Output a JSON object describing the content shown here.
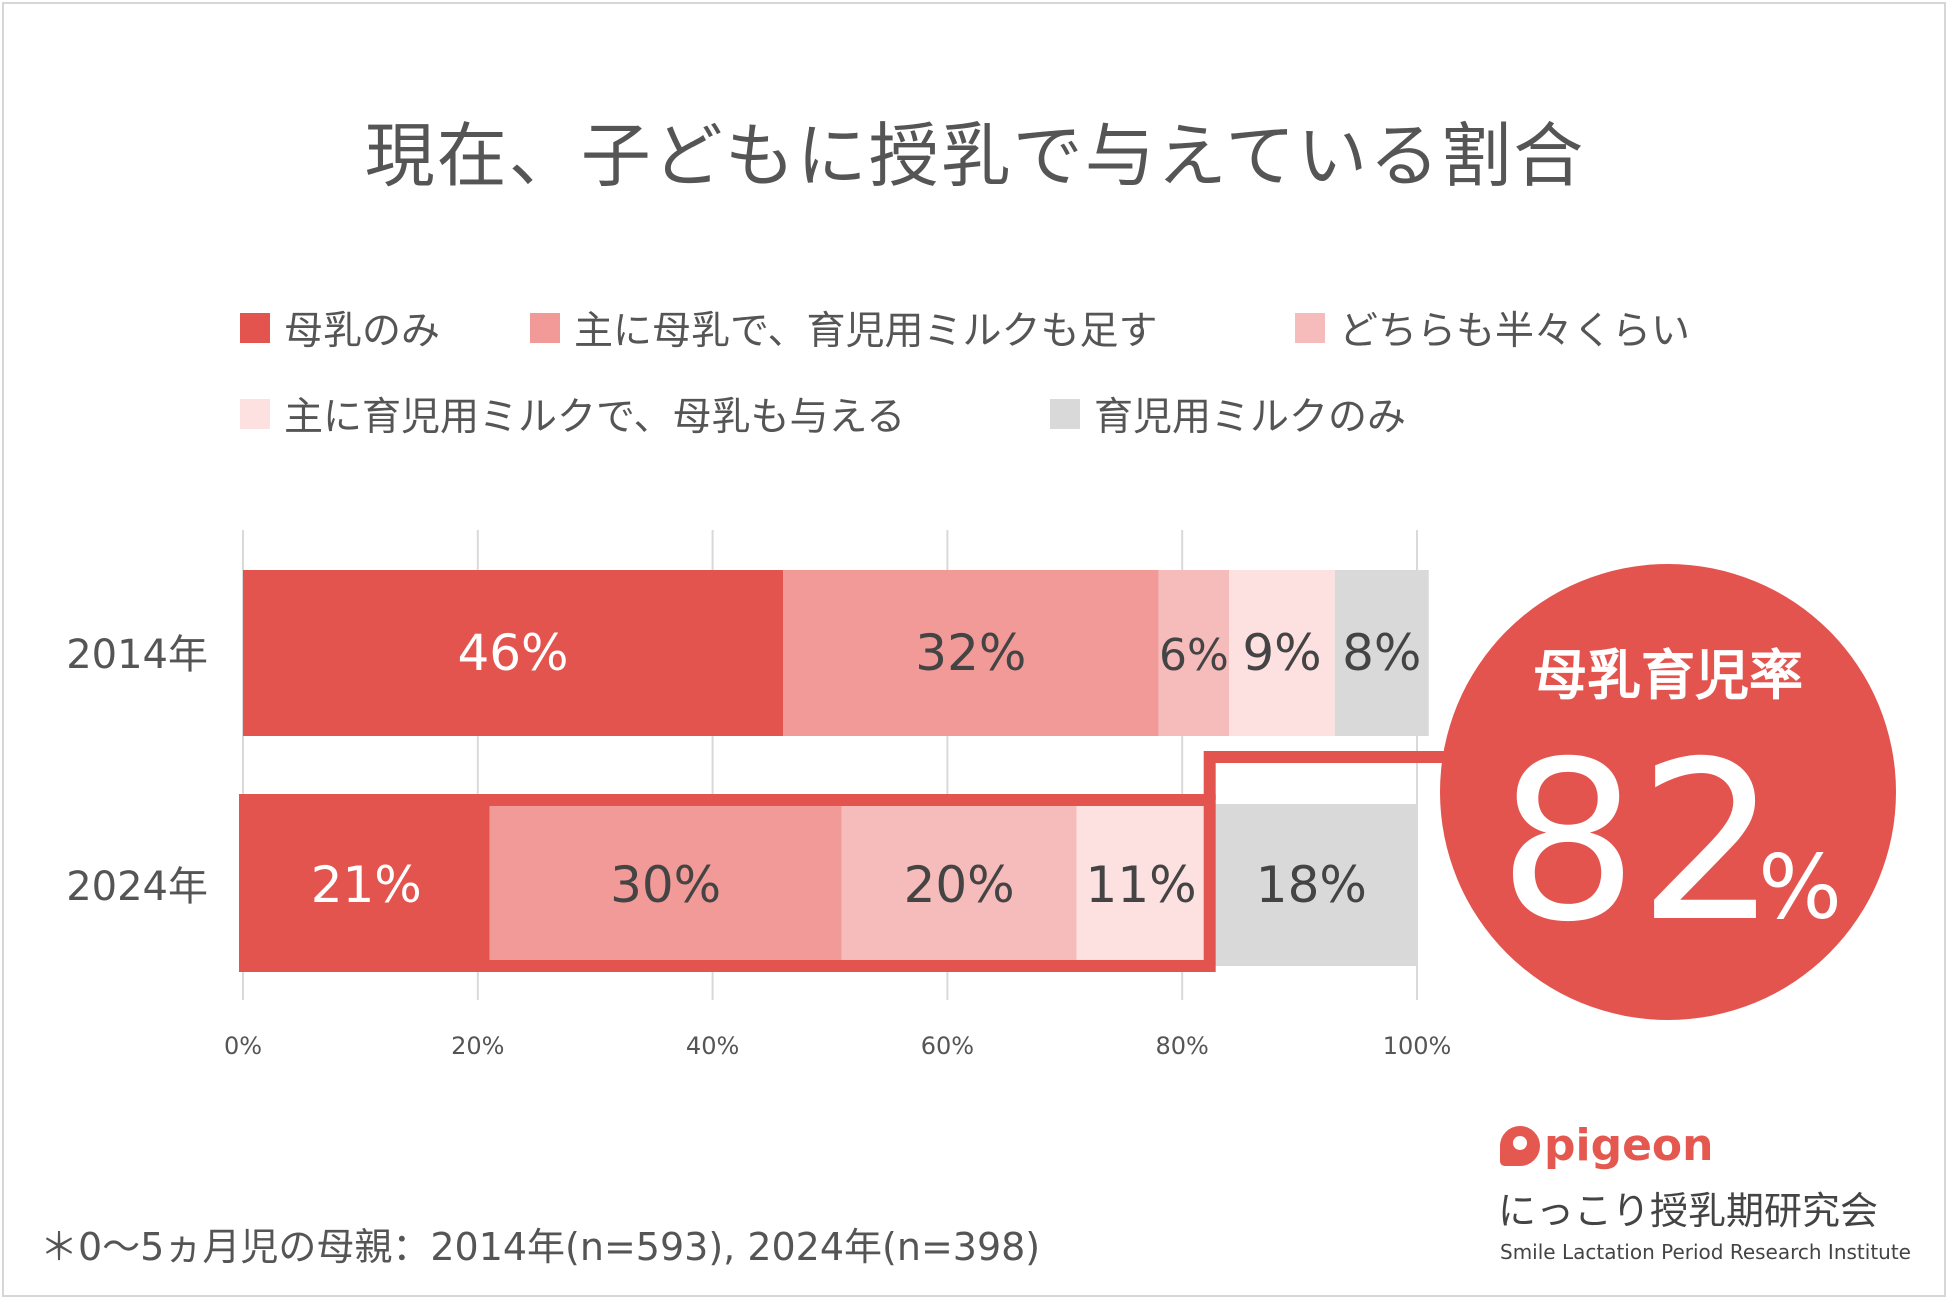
{
  "title": "現在、子どもに授乳で与えている割合",
  "legend": [
    {
      "label": "母乳のみ",
      "color": "#e4544f"
    },
    {
      "label": "主に母乳で、育児用ミルクも足す",
      "color": "#f19a97"
    },
    {
      "label": "どちらも半々くらい",
      "color": "#f6bcbb"
    },
    {
      "label": "主に育児用ミルクで、母乳も与える",
      "color": "#fde0e0"
    },
    {
      "label": "育児用ミルクのみ",
      "color": "#d9d9d9"
    }
  ],
  "chart_data": {
    "type": "bar",
    "orientation": "horizontal",
    "stacked": true,
    "categories": [
      "2014年",
      "2024年"
    ],
    "series": [
      {
        "name": "母乳のみ",
        "values": [
          46,
          21
        ],
        "labels": [
          "46%",
          "21%"
        ]
      },
      {
        "name": "主に母乳で、育児用ミルクも足す",
        "values": [
          32,
          30
        ],
        "labels": [
          "32%",
          "30%"
        ]
      },
      {
        "name": "どちらも半々くらい",
        "values": [
          6,
          20
        ],
        "labels": [
          "6%",
          "20%"
        ]
      },
      {
        "name": "主に育児用ミルクで、母乳も与える",
        "values": [
          9,
          11
        ],
        "labels": [
          "9%",
          "11%"
        ]
      },
      {
        "name": "育児用ミルクのみ",
        "values": [
          8,
          18
        ],
        "labels": [
          "8%",
          "18%"
        ]
      }
    ],
    "xlim": [
      0,
      100
    ],
    "xticks": [
      "0%",
      "20%",
      "40%",
      "60%",
      "80%",
      "100%"
    ],
    "grid": true,
    "legend_position": "top"
  },
  "callout": {
    "label": "母乳育児率",
    "value": "82",
    "unit": "%",
    "color": "#e4544f"
  },
  "footnote": "＊0〜5ヵ月児の母親：2014年(n=593), 2024年(n=398)",
  "brand": {
    "logo_text": "pigeon",
    "org_ja": "にっこり授乳期研究会",
    "org_en": "Smile Lactation Period Research Institute"
  }
}
